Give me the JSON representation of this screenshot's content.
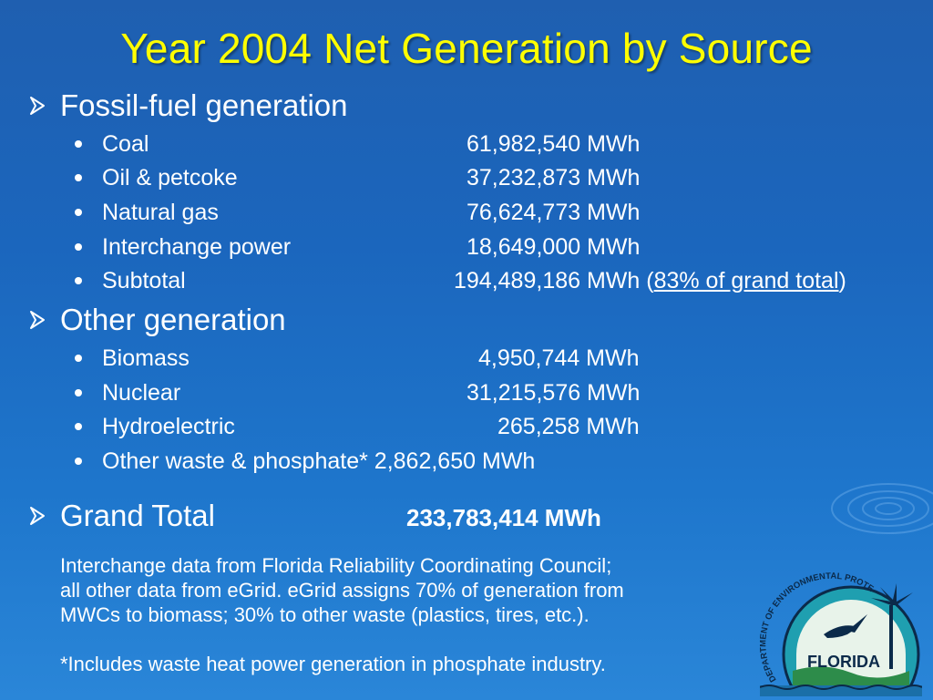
{
  "title": "Year 2004 Net Generation by Source",
  "sections": {
    "fossil": {
      "heading": "Fossil-fuel generation",
      "items": [
        {
          "label": "Coal",
          "value": "61,982,540 MWh"
        },
        {
          "label": "Oil & petcoke",
          "value": "37,232,873 MWh"
        },
        {
          "label": "Natural gas",
          "value": "76,624,773 MWh"
        },
        {
          "label": "Interchange power",
          "value": "18,649,000 MWh"
        },
        {
          "label": "Subtotal",
          "value": "194,489,186 MWh",
          "note_open": "(",
          "note_link": "83% of grand total",
          "note_close": ")"
        }
      ]
    },
    "other": {
      "heading": "Other generation",
      "items": [
        {
          "label": "Biomass",
          "value": "4,950,744 MWh"
        },
        {
          "label": "Nuclear",
          "value": "31,215,576 MWh"
        },
        {
          "label": "Hydroelectric",
          "value": "265,258 MWh"
        },
        {
          "label": "Other waste & phosphate* 2,862,650 MWh"
        }
      ]
    },
    "grand": {
      "heading": "Grand Total",
      "value": "233,783,414 MWh"
    }
  },
  "notes": {
    "line1": "Interchange data from Florida Reliability Coordinating Council;",
    "line2": "all other data from eGrid.  eGrid assigns 70% of generation from",
    "line3": "MWCs  to biomass; 30% to other waste (plastics, tires, etc.).",
    "line4": "*Includes waste heat power generation in phosphate industry."
  },
  "logo": {
    "arc_text": "DEPARTMENT OF ENVIRONMENTAL PROTECTION",
    "state_text": "FLORIDA"
  },
  "colors": {
    "title": "#ffff00",
    "text": "#ffffff",
    "background": "#1f66bd"
  }
}
